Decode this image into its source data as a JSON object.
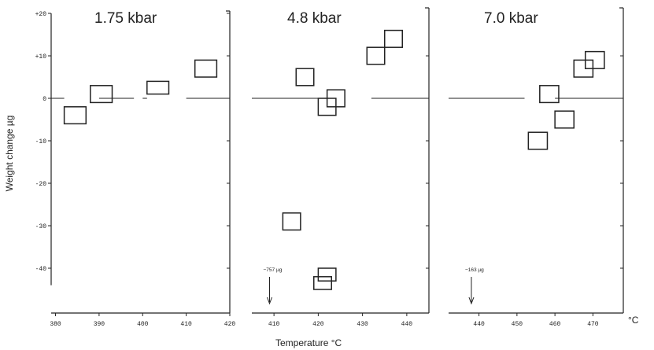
{
  "chart_data": {
    "type": "box-range",
    "ylabel": "Weight  change  µg",
    "xlabel": "Temperature   °C",
    "ylim": [
      -50,
      22
    ],
    "yticks": [
      {
        "v": 20,
        "label": "+20"
      },
      {
        "v": 10,
        "label": "+10"
      },
      {
        "v": 0,
        "label": "0"
      },
      {
        "v": -10,
        "label": "-10"
      },
      {
        "v": -20,
        "label": "-20"
      },
      {
        "v": -30,
        "label": "-30"
      },
      {
        "v": -40,
        "label": "-40"
      }
    ],
    "panels": [
      {
        "title": "1.75 kbar",
        "xlim": [
          379,
          420
        ],
        "xticks": [
          380,
          390,
          400,
          410,
          420
        ],
        "zero_segments": [
          [
            379,
            382
          ],
          [
            390,
            398
          ],
          [
            400,
            401
          ],
          [
            410,
            420
          ]
        ],
        "boxes": [
          {
            "x0": 382,
            "x1": 387,
            "y0": -6,
            "y1": -2
          },
          {
            "x0": 388,
            "x1": 393,
            "y0": -1,
            "y1": 3
          },
          {
            "x0": 401,
            "x1": 406,
            "y0": 1,
            "y1": 4
          },
          {
            "x0": 412,
            "x1": 417,
            "y0": 5,
            "y1": 9
          }
        ],
        "annotation": null
      },
      {
        "title": "4.8 kbar",
        "xlim": [
          405,
          445
        ],
        "xticks": [
          410,
          420,
          430,
          440
        ],
        "zero_segments": [
          [
            405,
            421
          ],
          [
            432,
            445
          ]
        ],
        "boxes": [
          {
            "x0": 415,
            "x1": 419,
            "y0": 3,
            "y1": 7
          },
          {
            "x0": 420,
            "x1": 424,
            "y0": -4,
            "y1": 0
          },
          {
            "x0": 422,
            "x1": 426,
            "y0": -2,
            "y1": 2
          },
          {
            "x0": 431,
            "x1": 435,
            "y0": 8,
            "y1": 12
          },
          {
            "x0": 435,
            "x1": 439,
            "y0": 12,
            "y1": 16
          },
          {
            "x0": 412,
            "x1": 416,
            "y0": -31,
            "y1": -27
          },
          {
            "x0": 420,
            "x1": 424,
            "y0": -43,
            "y1": -40
          },
          {
            "x0": 419,
            "x1": 423,
            "y0": -45,
            "y1": -42
          }
        ],
        "annotation": {
          "text": "−757 µg",
          "x": 409
        }
      },
      {
        "title": "7.0 kbar",
        "xlim": [
          432,
          478
        ],
        "xticks": [
          440,
          450,
          460,
          470
        ],
        "zero_segments": [
          [
            432,
            452
          ],
          [
            460,
            478
          ]
        ],
        "boxes": [
          {
            "x0": 453,
            "x1": 458,
            "y0": -12,
            "y1": -8
          },
          {
            "x0": 460,
            "x1": 465,
            "y0": -7,
            "y1": -3
          },
          {
            "x0": 456,
            "x1": 461,
            "y0": -1,
            "y1": 3
          },
          {
            "x0": 465,
            "x1": 470,
            "y0": 5,
            "y1": 9
          },
          {
            "x0": 468,
            "x1": 473,
            "y0": 7,
            "y1": 11
          }
        ],
        "annotation": {
          "text": "−163 µg",
          "x": 438
        }
      }
    ],
    "extra_xlabel": "°C"
  }
}
